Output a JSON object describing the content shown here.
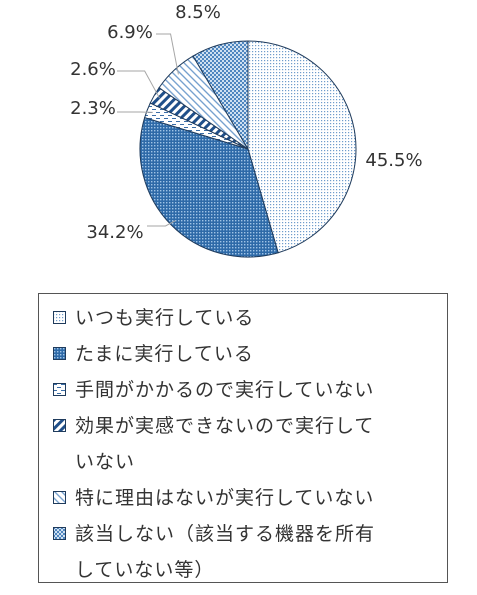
{
  "chart_data": {
    "type": "pie",
    "start_angle": 0,
    "direction": "clockwise",
    "slices": [
      {
        "label": "いつも実行している",
        "value": 45.5,
        "display": "45.5%",
        "pattern": "fine-dots",
        "color": "#c9dcef"
      },
      {
        "label": "たまに実行している",
        "value": 34.2,
        "display": "34.2%",
        "pattern": "dense-dots",
        "color": "#4f86bf"
      },
      {
        "label": "手間がかかるので実行していない",
        "value": 2.3,
        "display": "2.3%",
        "pattern": "dashes",
        "color": "#ffffff"
      },
      {
        "label": "効果が実感できないので実行していない",
        "value": 2.6,
        "display": "2.6%",
        "pattern": "wide-diagonal",
        "color": "#2f5f9a"
      },
      {
        "label": "特に理由はないが実行していない",
        "value": 6.9,
        "display": "6.9%",
        "pattern": "light-diagonal",
        "color": "#9bbbe0"
      },
      {
        "label": "該当しない（該当する機器を所有していない等）",
        "value": 8.5,
        "display": "8.5%",
        "pattern": "checker",
        "color": "#8fb3d9"
      }
    ],
    "legend": {
      "position": "bottom",
      "items": [
        {
          "lines": [
            "いつも実行している"
          ]
        },
        {
          "lines": [
            "たまに実行している"
          ]
        },
        {
          "lines": [
            "手間がかかるので実行していない"
          ]
        },
        {
          "lines": [
            "効果が実感できないので実行して",
            "いない"
          ]
        },
        {
          "lines": [
            "特に理由はないが実行していない"
          ]
        },
        {
          "lines": [
            "該当しない（該当する機器を所有",
            "していない等）"
          ]
        }
      ]
    }
  }
}
